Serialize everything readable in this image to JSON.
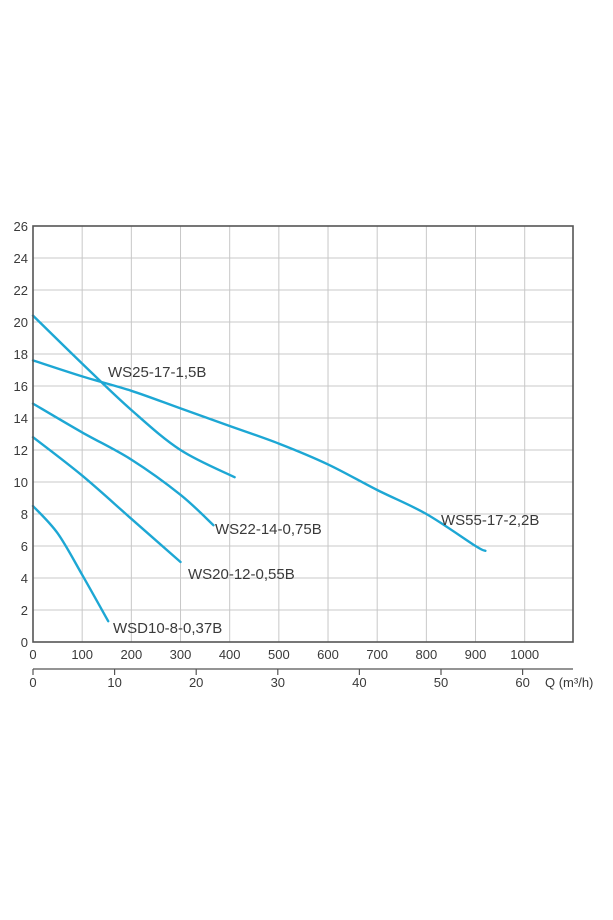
{
  "chart_data": {
    "type": "line",
    "ylim": [
      0,
      26
    ],
    "y_ticks": [
      "0",
      "2",
      "4",
      "6",
      "8",
      "10",
      "12",
      "14",
      "16",
      "18",
      "20",
      "22",
      "24",
      "26"
    ],
    "x_primary": {
      "range": [
        0,
        1100
      ],
      "ticks": [
        "0",
        "100",
        "200",
        "300",
        "400",
        "500",
        "600",
        "700",
        "800",
        "900",
        "1000"
      ]
    },
    "x_secondary": {
      "ticks": [
        "0",
        "10",
        "20",
        "30",
        "40",
        "50",
        "60"
      ],
      "label": "Q (m³/h)"
    },
    "grid": true,
    "line_color": "#1da7d4",
    "series": [
      {
        "name": "WS25-17-1,5B",
        "x": [
          0,
          100,
          200,
          300,
          410
        ],
        "y": [
          20.4,
          17.4,
          14.5,
          12.0,
          10.3
        ]
      },
      {
        "name": "WS55-17-2,2B",
        "x": [
          0,
          100,
          200,
          300,
          400,
          500,
          600,
          700,
          800,
          900,
          920
        ],
        "y": [
          17.6,
          16.6,
          15.7,
          14.6,
          13.5,
          12.4,
          11.1,
          9.5,
          8.0,
          6.0,
          5.7
        ]
      },
      {
        "name": "WS22-14-0,75B",
        "x": [
          0,
          100,
          200,
          300,
          367
        ],
        "y": [
          14.9,
          13.1,
          11.4,
          9.2,
          7.3
        ]
      },
      {
        "name": "WS20-12-0,55B",
        "x": [
          0,
          100,
          200,
          300
        ],
        "y": [
          12.8,
          10.4,
          7.7,
          5.0
        ]
      },
      {
        "name": "WSD10-8-0,37B",
        "x": [
          0,
          50,
          100,
          153
        ],
        "y": [
          8.5,
          6.8,
          4.2,
          1.3
        ]
      }
    ]
  }
}
